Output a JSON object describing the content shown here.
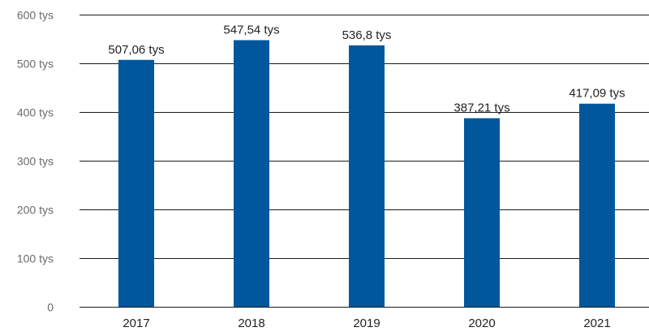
{
  "chart_data": {
    "type": "bar",
    "categories": [
      "2017",
      "2018",
      "2019",
      "2020",
      "2021"
    ],
    "values": [
      507.06,
      547.54,
      536.8,
      387.21,
      417.09
    ],
    "data_labels": [
      "507,06 tys",
      "547,54 tys",
      "536,8 tys",
      "387,21 tys",
      "417,09 tys"
    ],
    "y_ticks": [
      {
        "value": 0,
        "label": "0"
      },
      {
        "value": 100,
        "label": "100 tys"
      },
      {
        "value": 200,
        "label": "200 tys"
      },
      {
        "value": 300,
        "label": "300 tys"
      },
      {
        "value": 400,
        "label": "400 tys"
      },
      {
        "value": 500,
        "label": "500 tys"
      },
      {
        "value": 600,
        "label": "600 tys"
      }
    ],
    "ylim": [
      0,
      600
    ],
    "grid": true,
    "legend": "none",
    "bar_color": "#00579c",
    "title": "",
    "xlabel": "",
    "ylabel": ""
  }
}
